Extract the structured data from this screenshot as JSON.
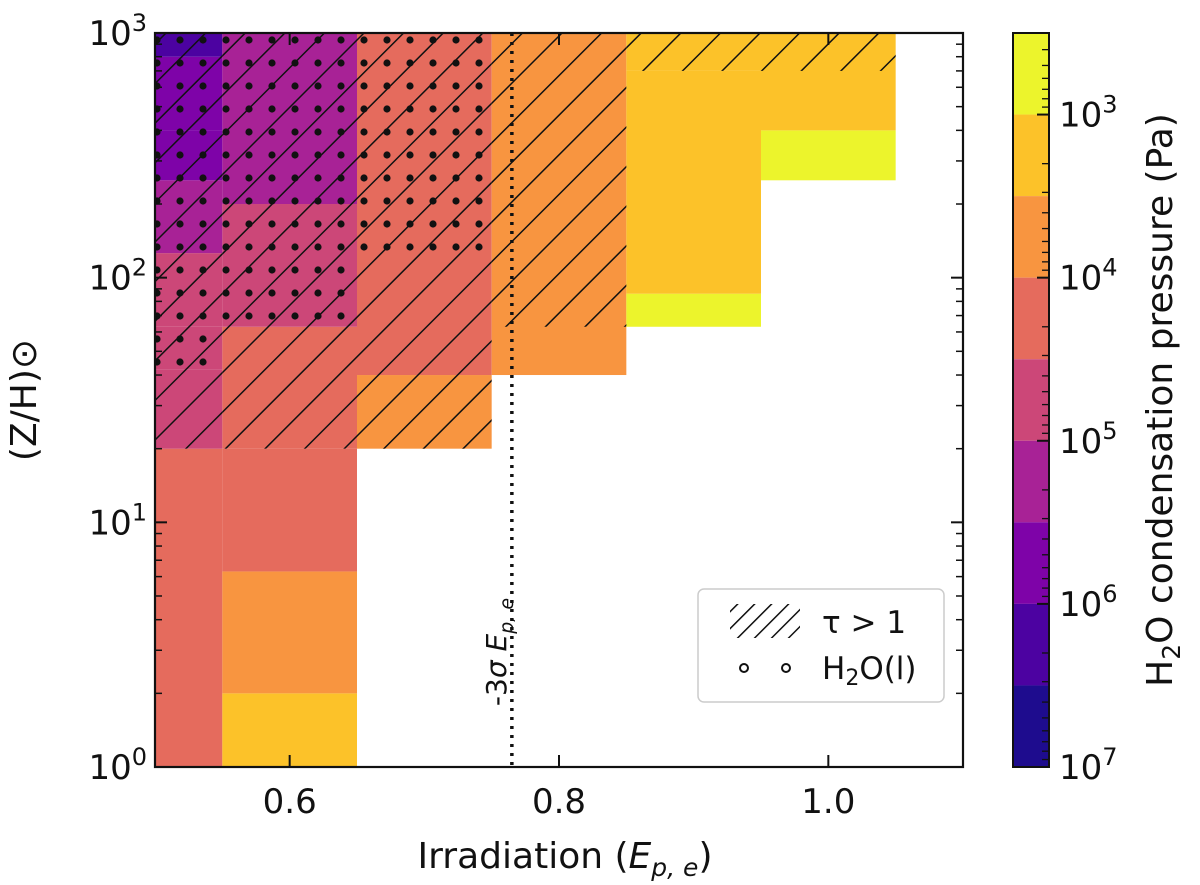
{
  "colors": {
    "bins": [
      "#ecf42c",
      "#fcc229",
      "#f89540",
      "#e56b5d",
      "#cc4778",
      "#a82296",
      "#7e03a8",
      "#4c02a1",
      "#1e0c8e"
    ],
    "vline": "#111111",
    "frame": "#111111"
  },
  "chart_data": {
    "type": "heatmap",
    "x": {
      "label": "Irradiation (Ep, e)",
      "label_prefix": "Irradiation (",
      "label_var": "E",
      "label_sub": "p, e",
      "label_suffix": ")",
      "range": [
        0.5,
        1.1
      ],
      "ticks": [
        0.6,
        0.8,
        1.0
      ],
      "tick_labels": [
        "0.6",
        "0.8",
        "1.0"
      ]
    },
    "y": {
      "label": "(Z/H)⊙",
      "scale": "log",
      "range": [
        1,
        1000
      ],
      "ticks": [
        1,
        10,
        100,
        1000
      ],
      "tick_labels": [
        "10^0",
        "10^1",
        "10^2",
        "10^3"
      ]
    },
    "colorbar": {
      "label": "H2O condensation pressure (Pa)",
      "label_pre": "H",
      "label_sub": "2",
      "label_post": "O condensation pressure (Pa)",
      "scale": "log",
      "inverted": true,
      "range": [
        10000000,
        316.2
      ],
      "bin_edges_log10": [
        2.5,
        3.0,
        3.5,
        4.0,
        4.5,
        5.0,
        5.5,
        6.0,
        6.5,
        7.0
      ],
      "ticks": [
        1000,
        10000,
        100000,
        1000000,
        10000000
      ],
      "tick_labels": [
        "10^3",
        "10^4",
        "10^5",
        "10^6",
        "10^7"
      ]
    },
    "cells": [
      {
        "x": [
          0.5,
          0.55
        ],
        "y": [
          1,
          20
        ],
        "log10_p": 4.25
      },
      {
        "x": [
          0.5,
          0.55
        ],
        "y": [
          20,
          42
        ],
        "log10_p": 4.75
      },
      {
        "x": [
          0.5,
          0.55
        ],
        "y": [
          42,
          63
        ],
        "log10_p": 4.75
      },
      {
        "x": [
          0.5,
          0.55
        ],
        "y": [
          63,
          126
        ],
        "log10_p": 4.75
      },
      {
        "x": [
          0.5,
          0.55
        ],
        "y": [
          126,
          250
        ],
        "log10_p": 5.25
      },
      {
        "x": [
          0.5,
          0.55
        ],
        "y": [
          250,
          398
        ],
        "log10_p": 5.75
      },
      {
        "x": [
          0.5,
          0.55
        ],
        "y": [
          398,
          800
        ],
        "log10_p": 5.75
      },
      {
        "x": [
          0.5,
          0.55
        ],
        "y": [
          800,
          1000
        ],
        "log10_p": 6.25
      },
      {
        "x": [
          0.55,
          0.65
        ],
        "y": [
          1,
          2
        ],
        "log10_p": 3.25
      },
      {
        "x": [
          0.55,
          0.65
        ],
        "y": [
          2,
          6.3
        ],
        "log10_p": 3.75
      },
      {
        "x": [
          0.55,
          0.65
        ],
        "y": [
          6.3,
          20
        ],
        "log10_p": 4.25
      },
      {
        "x": [
          0.55,
          0.65
        ],
        "y": [
          20,
          63
        ],
        "log10_p": 4.25
      },
      {
        "x": [
          0.55,
          0.65
        ],
        "y": [
          63,
          200
        ],
        "log10_p": 4.75
      },
      {
        "x": [
          0.55,
          0.65
        ],
        "y": [
          200,
          1000
        ],
        "log10_p": 5.25
      },
      {
        "x": [
          0.65,
          0.75
        ],
        "y": [
          20,
          40
        ],
        "log10_p": 3.75
      },
      {
        "x": [
          0.65,
          0.75
        ],
        "y": [
          40,
          1000
        ],
        "log10_p": 4.25
      },
      {
        "x": [
          0.75,
          0.85
        ],
        "y": [
          40,
          1000
        ],
        "log10_p": 3.75
      },
      {
        "x": [
          0.85,
          0.95
        ],
        "y": [
          63,
          86
        ],
        "log10_p": 2.75
      },
      {
        "x": [
          0.85,
          0.95
        ],
        "y": [
          86,
          700
        ],
        "log10_p": 3.25
      },
      {
        "x": [
          0.85,
          0.95
        ],
        "y": [
          700,
          1000
        ],
        "log10_p": 3.25
      },
      {
        "x": [
          0.95,
          1.05
        ],
        "y": [
          250,
          400
        ],
        "log10_p": 2.75
      },
      {
        "x": [
          0.95,
          1.05
        ],
        "y": [
          400,
          1000
        ],
        "log10_p": 3.25
      }
    ],
    "hatch_regions": [
      {
        "x": [
          0.5,
          0.55
        ],
        "y": [
          20,
          1000
        ]
      },
      {
        "x": [
          0.55,
          0.65
        ],
        "y": [
          20,
          1000
        ]
      },
      {
        "x": [
          0.65,
          0.75
        ],
        "y": [
          20,
          1000
        ]
      },
      {
        "x": [
          0.75,
          0.85
        ],
        "y": [
          63,
          1000
        ]
      },
      {
        "x": [
          0.85,
          0.95
        ],
        "y": [
          700,
          1000
        ]
      },
      {
        "x": [
          0.95,
          1.05
        ],
        "y": [
          700,
          1000
        ]
      }
    ],
    "dot_regions": [
      {
        "x": [
          0.5,
          0.55
        ],
        "y": [
          40,
          1000
        ]
      },
      {
        "x": [
          0.55,
          0.65
        ],
        "y": [
          63,
          1000
        ]
      },
      {
        "x": [
          0.65,
          0.75
        ],
        "y": [
          126,
          1000
        ]
      }
    ],
    "vline": {
      "x": 0.765,
      "label": "-3σ Ep, e",
      "label_pre": "-3",
      "label_sigma": "σ",
      "label_var": "E",
      "label_sub": "p, e"
    },
    "legend": {
      "position": "lower-right",
      "entries": [
        {
          "symbol": "hatch",
          "label": "τ > 1"
        },
        {
          "symbol": "dots",
          "label": "H2O(l)",
          "label_pre": "H",
          "label_sub": "2",
          "label_post": "O(l)"
        }
      ]
    }
  }
}
